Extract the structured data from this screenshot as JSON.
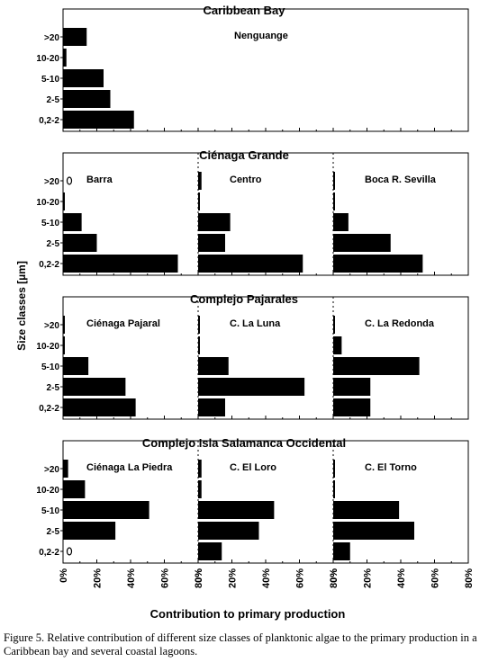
{
  "figure": {
    "y_axis_label": "Size classes  [µm]",
    "x_axis_label": "Contribution  to primary production",
    "caption": "Figure 5. Relative contribution of different size classes of planktonic algae to the primary production in a Caribbean bay and several coastal lagoons."
  },
  "chart_data": {
    "type": "bar",
    "orientation": "horizontal",
    "categories": [
      ">20",
      "10-20",
      "5-10",
      "2-5",
      "0,2-2"
    ],
    "x_tick_labels": [
      "0%",
      "20%",
      "40%",
      "60%",
      "80%"
    ],
    "xlim": [
      0,
      80
    ],
    "unit": "%",
    "groups": [
      {
        "title": "Caribbean Bay",
        "panels": [
          {
            "name": "Nenguange",
            "values": [
              14,
              2,
              24,
              28,
              42
            ],
            "zero_markers": []
          }
        ]
      },
      {
        "title": "Ciénaga Grande",
        "panels": [
          {
            "name": "Barra",
            "values": [
              0,
              1,
              11,
              20,
              68
            ],
            "zero_markers": [
              ">20"
            ]
          },
          {
            "name": "Centro",
            "values": [
              2,
              1,
              19,
              16,
              62
            ],
            "zero_markers": []
          },
          {
            "name": "Boca R. Sevilla",
            "values": [
              1,
              1,
              9,
              34,
              53
            ],
            "zero_markers": []
          }
        ]
      },
      {
        "title": "Complejo Pajarales",
        "panels": [
          {
            "name": "Ciénaga Pajaral",
            "values": [
              1,
              1,
              15,
              37,
              43
            ],
            "zero_markers": []
          },
          {
            "name": "C. La Luna",
            "values": [
              1,
              1,
              18,
              63,
              16
            ],
            "zero_markers": []
          },
          {
            "name": "C. La Redonda",
            "values": [
              1,
              5,
              51,
              22,
              22
            ],
            "zero_markers": []
          }
        ]
      },
      {
        "title": "Complejo Isla Salamanca Occidental",
        "panels": [
          {
            "name": "Ciénaga La Piedra",
            "values": [
              3,
              13,
              51,
              31,
              0
            ],
            "zero_markers": [
              "0,2-2"
            ]
          },
          {
            "name": "C. El Loro",
            "values": [
              2,
              2,
              45,
              36,
              14
            ],
            "zero_markers": []
          },
          {
            "name": "C. El Torno",
            "values": [
              1,
              1,
              39,
              48,
              10
            ],
            "zero_markers": []
          }
        ]
      }
    ]
  }
}
